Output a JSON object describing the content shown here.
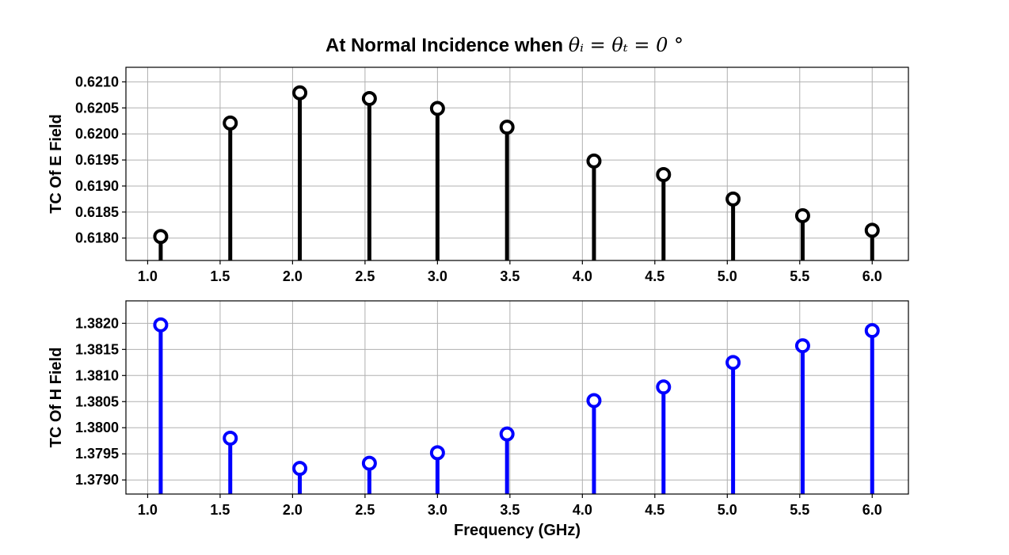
{
  "figure": {
    "title_prefix": "At Normal Incidence when ",
    "title_math": "θᵢ = θₜ = 0 °"
  },
  "chart_data": [
    {
      "type": "stem",
      "title": "",
      "xlabel": "",
      "ylabel": "TC Of E Field",
      "x": [
        1.09,
        1.57,
        2.05,
        2.53,
        3.0,
        3.48,
        4.08,
        4.56,
        5.04,
        5.52,
        6.0
      ],
      "values": [
        0.61803,
        0.62021,
        0.62079,
        0.62068,
        0.62049,
        0.62013,
        0.61948,
        0.61922,
        0.61875,
        0.61843,
        0.61815
      ],
      "xlim": [
        0.85,
        6.25
      ],
      "ylim": [
        0.61757,
        0.62128
      ],
      "xticks": [
        1.0,
        1.5,
        2.0,
        2.5,
        3.0,
        3.5,
        4.0,
        4.5,
        5.0,
        5.5,
        6.0
      ],
      "xtick_labels": [
        "1.0",
        "1.5",
        "2.0",
        "2.5",
        "3.0",
        "3.5",
        "4.0",
        "4.5",
        "5.0",
        "5.5",
        "6.0"
      ],
      "yticks": [
        0.618,
        0.6185,
        0.619,
        0.6195,
        0.62,
        0.6205,
        0.621
      ],
      "ytick_labels": [
        "0.6180",
        "0.6185",
        "0.6190",
        "0.6195",
        "0.6200",
        "0.6205",
        "0.6210"
      ],
      "color": "#000000",
      "grid": true
    },
    {
      "type": "stem",
      "title": "",
      "xlabel": "Frequency (GHz)",
      "ylabel": "TC Of H Field",
      "x": [
        1.09,
        1.57,
        2.05,
        2.53,
        3.0,
        3.48,
        4.08,
        4.56,
        5.04,
        5.52,
        6.0
      ],
      "values": [
        1.38197,
        1.3798,
        1.37922,
        1.37932,
        1.37952,
        1.37988,
        1.38052,
        1.38078,
        1.38125,
        1.38157,
        1.38186
      ],
      "xlim": [
        0.85,
        6.25
      ],
      "ylim": [
        1.37873,
        1.38243
      ],
      "xticks": [
        1.0,
        1.5,
        2.0,
        2.5,
        3.0,
        3.5,
        4.0,
        4.5,
        5.0,
        5.5,
        6.0
      ],
      "xtick_labels": [
        "1.0",
        "1.5",
        "2.0",
        "2.5",
        "3.0",
        "3.5",
        "4.0",
        "4.5",
        "5.0",
        "5.5",
        "6.0"
      ],
      "yticks": [
        1.379,
        1.3795,
        1.38,
        1.3805,
        1.381,
        1.3815,
        1.382
      ],
      "ytick_labels": [
        "1.3790",
        "1.3795",
        "1.3800",
        "1.3805",
        "1.3810",
        "1.3815",
        "1.3820"
      ],
      "color": "#0000ff",
      "grid": true
    }
  ]
}
